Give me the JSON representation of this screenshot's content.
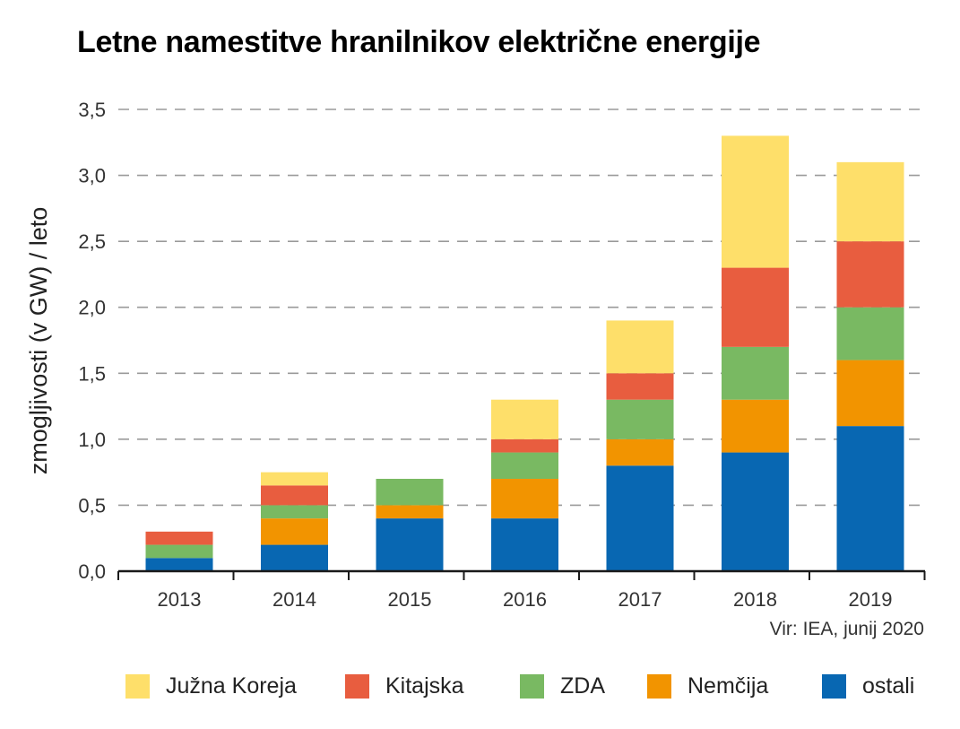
{
  "title": "Letne namestitve hranilnikov električne energije",
  "source_note": "Vir: IEA, junij 2020",
  "chart_data": {
    "type": "bar",
    "stacked": true,
    "ylabel": "zmogljivosti (v GW) / leto",
    "ylim": [
      0,
      3.5
    ],
    "yticks": [
      "0,0",
      "0,5",
      "1,0",
      "1,5",
      "2,0",
      "2,5",
      "3,0",
      "3,5"
    ],
    "grid": "horizontal dashed",
    "legend_position": "bottom",
    "categories": [
      "2013",
      "2014",
      "2015",
      "2016",
      "2017",
      "2018",
      "2019"
    ],
    "series": [
      {
        "name": "ostali",
        "color": "#0867b2",
        "values": [
          0.1,
          0.2,
          0.4,
          0.4,
          0.8,
          0.9,
          1.1
        ]
      },
      {
        "name": "Nemčija",
        "color": "#f29400",
        "values": [
          0.0,
          0.2,
          0.1,
          0.3,
          0.2,
          0.4,
          0.5
        ]
      },
      {
        "name": "ZDA",
        "color": "#79b962",
        "values": [
          0.1,
          0.1,
          0.2,
          0.2,
          0.3,
          0.4,
          0.4
        ]
      },
      {
        "name": "Kitajska",
        "color": "#e85d3f",
        "values": [
          0.1,
          0.15,
          0.0,
          0.1,
          0.2,
          0.6,
          0.5
        ]
      },
      {
        "name": "Južna Koreja",
        "color": "#fedf6a",
        "values": [
          0.0,
          0.1,
          0.0,
          0.3,
          0.4,
          1.0,
          0.6
        ]
      }
    ],
    "legend_order": [
      "Južna Koreja",
      "Kitajska",
      "ZDA",
      "Nemčija",
      "ostali"
    ]
  }
}
